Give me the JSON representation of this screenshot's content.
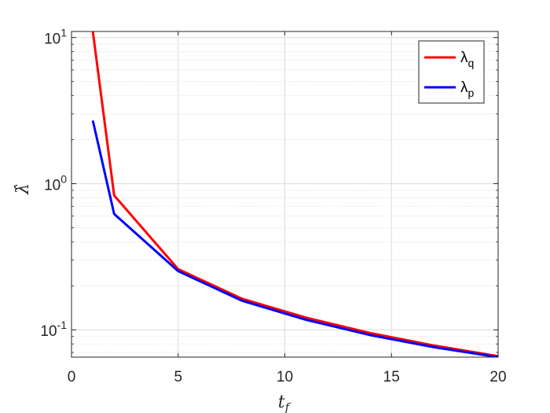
{
  "chart_data": {
    "type": "line",
    "xlabel_main": "t",
    "xlabel_sub": "f",
    "ylabel": "λ̂",
    "xlim": [
      0,
      20
    ],
    "ylim": [
      0.065,
      11
    ],
    "yscale": "log",
    "grid": true,
    "legend_position": "top-right",
    "xticks": [
      {
        "value": 0,
        "label": "0"
      },
      {
        "value": 5,
        "label": "5"
      },
      {
        "value": 10,
        "label": "10"
      },
      {
        "value": 15,
        "label": "15"
      },
      {
        "value": 20,
        "label": "20"
      }
    ],
    "yticks": [
      {
        "value": 0.1,
        "base": "10",
        "exp": "-1"
      },
      {
        "value": 1,
        "base": "10",
        "exp": "0"
      },
      {
        "value": 10,
        "base": "10",
        "exp": "1"
      }
    ],
    "series": [
      {
        "name_main": "λ",
        "name_sub": "q",
        "color": "#ff0000",
        "x": [
          1,
          2,
          5,
          8,
          11,
          14,
          17,
          20
        ],
        "y": [
          11,
          0.83,
          0.26,
          0.163,
          0.121,
          0.095,
          0.078,
          0.066
        ]
      },
      {
        "name_main": "λ",
        "name_sub": "p",
        "color": "#0000ff",
        "x": [
          1,
          2,
          5,
          8,
          11,
          14,
          17,
          20
        ],
        "y": [
          2.7,
          0.62,
          0.252,
          0.158,
          0.117,
          0.092,
          0.076,
          0.065
        ]
      }
    ]
  }
}
